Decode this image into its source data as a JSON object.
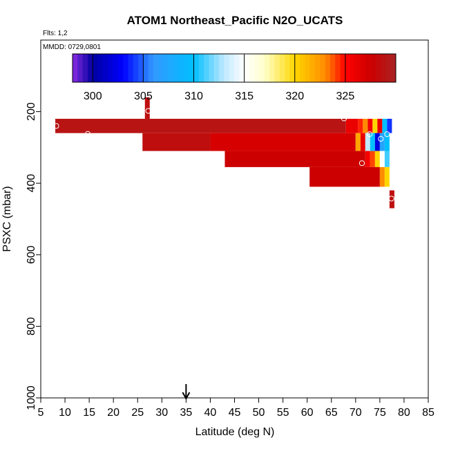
{
  "chart_data": {
    "type": "heatmap",
    "title": "ATOM1 Northeast_Pacific N2O_UCATS",
    "flights_label": "Flts: 1,2",
    "mmdd_label": "MMDD: 0729,0801",
    "xlabel": "Latitude (deg N)",
    "ylabel": "PSXC (mbar)",
    "xlim": [
      5,
      85
    ],
    "ylim": [
      1000,
      0
    ],
    "x_ticks": [
      "5",
      "10",
      "15",
      "20",
      "25",
      "30",
      "35",
      "40",
      "45",
      "50",
      "55",
      "60",
      "65",
      "70",
      "75",
      "80",
      "85"
    ],
    "y_ticks": [
      "200",
      "400",
      "600",
      "800",
      "1000"
    ],
    "colorbar": {
      "range": [
        298,
        330
      ],
      "tick_labels": [
        "300",
        "305",
        "310",
        "315",
        "320",
        "325"
      ],
      "stops": [
        {
          "v": 298,
          "color": "#8a2be2"
        },
        {
          "v": 300,
          "color": "#0000a0"
        },
        {
          "v": 303,
          "color": "#0000ff"
        },
        {
          "v": 306,
          "color": "#3399ff"
        },
        {
          "v": 310,
          "color": "#00bfff"
        },
        {
          "v": 313,
          "color": "#bfe8ff"
        },
        {
          "v": 315,
          "color": "#ffffff"
        },
        {
          "v": 317,
          "color": "#ffffcc"
        },
        {
          "v": 320,
          "color": "#ffd700"
        },
        {
          "v": 323,
          "color": "#ff8c00"
        },
        {
          "v": 325,
          "color": "#ff0000"
        },
        {
          "v": 327.5,
          "color": "#cc0000"
        },
        {
          "v": 330,
          "color": "#aa2222"
        }
      ]
    },
    "cells": [
      {
        "x0": 26.5,
        "x1": 27.5,
        "p0": 160,
        "p1": 220,
        "v": 328.5
      },
      {
        "x0": 8,
        "x1": 68,
        "p0": 220,
        "p1": 260,
        "v": 329
      },
      {
        "x0": 68,
        "x1": 70.5,
        "p0": 220,
        "p1": 260,
        "v": 326
      },
      {
        "x0": 70.5,
        "x1": 71.5,
        "p0": 220,
        "p1": 260,
        "v": 324.5
      },
      {
        "x0": 71.5,
        "x1": 72.5,
        "p0": 220,
        "p1": 260,
        "v": 323
      },
      {
        "x0": 72.5,
        "x1": 73.5,
        "p0": 220,
        "p1": 260,
        "v": 325.5
      },
      {
        "x0": 73.5,
        "x1": 74.5,
        "p0": 220,
        "p1": 260,
        "v": 320
      },
      {
        "x0": 74.5,
        "x1": 75.5,
        "p0": 220,
        "p1": 260,
        "v": 326
      },
      {
        "x0": 75.5,
        "x1": 76.5,
        "p0": 220,
        "p1": 260,
        "v": 310
      },
      {
        "x0": 76.5,
        "x1": 77.5,
        "p0": 220,
        "p1": 260,
        "v": 304
      },
      {
        "x0": 26,
        "x1": 40,
        "p0": 260,
        "p1": 310,
        "v": 328.5
      },
      {
        "x0": 40,
        "x1": 70,
        "p0": 260,
        "p1": 310,
        "v": 327
      },
      {
        "x0": 70,
        "x1": 71,
        "p0": 260,
        "p1": 310,
        "v": 322
      },
      {
        "x0": 71,
        "x1": 72,
        "p0": 260,
        "p1": 310,
        "v": 326
      },
      {
        "x0": 72,
        "x1": 73,
        "p0": 260,
        "p1": 310,
        "v": 313
      },
      {
        "x0": 73,
        "x1": 74,
        "p0": 260,
        "p1": 310,
        "v": 310
      },
      {
        "x0": 74,
        "x1": 75,
        "p0": 260,
        "p1": 310,
        "v": 302
      },
      {
        "x0": 75,
        "x1": 76,
        "p0": 260,
        "p1": 310,
        "v": 307
      },
      {
        "x0": 76,
        "x1": 77,
        "p0": 260,
        "p1": 310,
        "v": 310
      },
      {
        "x0": 43,
        "x1": 72,
        "p0": 310,
        "p1": 355,
        "v": 327.5
      },
      {
        "x0": 72,
        "x1": 73,
        "p0": 310,
        "p1": 355,
        "v": 325.5
      },
      {
        "x0": 73,
        "x1": 74,
        "p0": 310,
        "p1": 355,
        "v": 324
      },
      {
        "x0": 74,
        "x1": 75,
        "p0": 310,
        "p1": 355,
        "v": 320
      },
      {
        "x0": 75,
        "x1": 76,
        "p0": 310,
        "p1": 355,
        "v": 315
      },
      {
        "x0": 76,
        "x1": 77,
        "p0": 310,
        "p1": 355,
        "v": 311
      },
      {
        "x0": 60.5,
        "x1": 75,
        "p0": 355,
        "p1": 410,
        "v": 327.5
      },
      {
        "x0": 75,
        "x1": 76,
        "p0": 355,
        "p1": 410,
        "v": 323
      },
      {
        "x0": 76,
        "x1": 77,
        "p0": 355,
        "p1": 410,
        "v": 320
      },
      {
        "x0": 77,
        "x1": 78,
        "p0": 420,
        "p1": 470,
        "v": 328.5
      }
    ],
    "points": [
      {
        "x": 8.2,
        "p": 240
      },
      {
        "x": 14.7,
        "p": 262
      },
      {
        "x": 27.2,
        "p": 198
      },
      {
        "x": 67.6,
        "p": 219
      },
      {
        "x": 72.9,
        "p": 263
      },
      {
        "x": 76.5,
        "p": 263
      },
      {
        "x": 75.2,
        "p": 276
      },
      {
        "x": 71.3,
        "p": 344
      },
      {
        "x": 77.4,
        "p": 443
      }
    ],
    "arrow_latitude": 35
  }
}
